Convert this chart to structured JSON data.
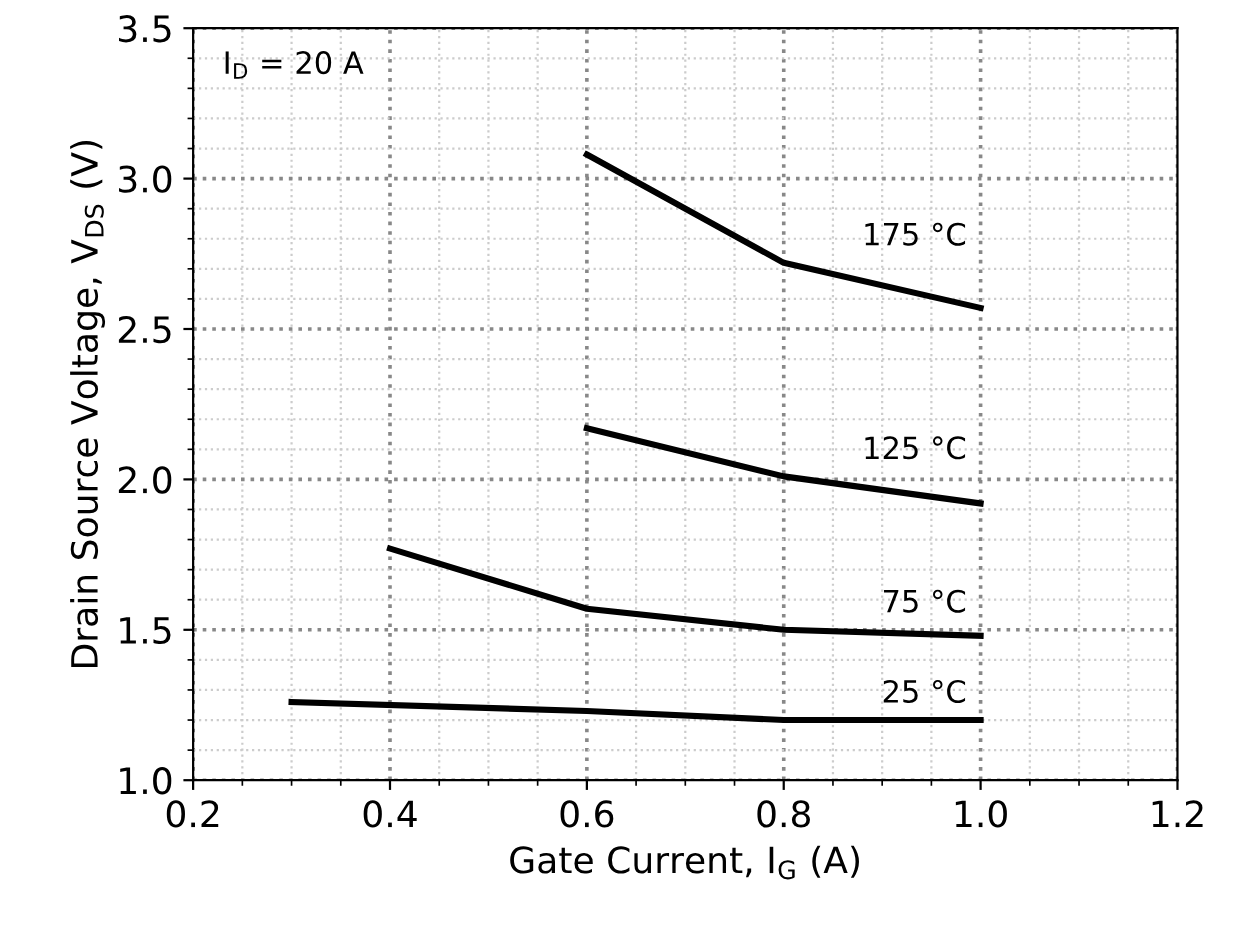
{
  "chart_data": {
    "type": "line",
    "xlabel": "Gate Current, I$_{G}$ (A)",
    "ylabel": "Drain Source Voltage, V$_{DS}$ (V)",
    "annotations": [
      "I$_{D}$ = 20 A"
    ],
    "xlim": [
      0.2,
      1.2
    ],
    "xticks": [
      {
        "value": 0.2,
        "label": "0.2"
      },
      {
        "value": 0.4,
        "label": "0.4"
      },
      {
        "value": 0.6,
        "label": "0.6"
      },
      {
        "value": 0.8,
        "label": "0.8"
      },
      {
        "value": 1.0,
        "label": "1.0"
      },
      {
        "value": 1.2,
        "label": "1.2"
      }
    ],
    "ylim": [
      1.0,
      3.5
    ],
    "yticks": [
      {
        "value": 1.0,
        "label": "1.0"
      },
      {
        "value": 1.5,
        "label": "1.5"
      },
      {
        "value": 2.0,
        "label": "2.0"
      },
      {
        "value": 2.5,
        "label": "2.5"
      },
      {
        "value": 3.0,
        "label": "3.0"
      },
      {
        "value": 3.5,
        "label": "3.5"
      }
    ],
    "grid": true,
    "legend": false,
    "marker": "none",
    "line_style": "solid",
    "series": [
      {
        "name": "175 °C",
        "color": "#000000",
        "x": [
          0.6,
          0.8,
          1.0
        ],
        "values": [
          3.08,
          2.72,
          2.57
        ]
      },
      {
        "name": "125 °C",
        "color": "#000000",
        "x": [
          0.6,
          0.8,
          1.0
        ],
        "values": [
          2.17,
          2.01,
          1.92
        ]
      },
      {
        "name": "75 °C",
        "color": "#000000",
        "x": [
          0.4,
          0.6,
          0.8,
          1.0
        ],
        "values": [
          1.77,
          1.57,
          1.5,
          1.48
        ]
      },
      {
        "name": "25 °C",
        "color": "#000000",
        "x": [
          0.3,
          0.6,
          0.8,
          1.0
        ],
        "values": [
          1.26,
          1.23,
          1.2,
          1.2
        ]
      }
    ]
  }
}
